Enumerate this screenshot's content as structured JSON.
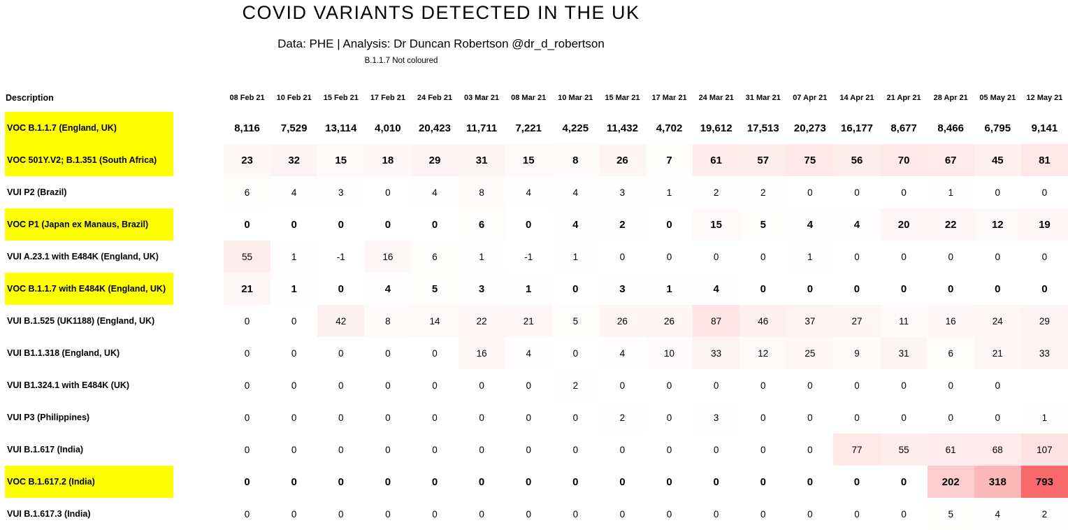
{
  "chart_data": {
    "type": "heatmap",
    "title": "COVID VARIANTS DETECTED IN THE UK",
    "subtitle": "Data: PHE | Analysis: Dr Duncan Robertson @dr_d_robertson",
    "note": "B.1.1.7 Not coloured",
    "row_header_label": "Description",
    "columns": [
      "08 Feb 21",
      "10 Feb 21",
      "15 Feb 21",
      "17 Feb 21",
      "24 Feb 21",
      "03 Mar 21",
      "08 Mar 21",
      "10 Mar 21",
      "15 Mar 21",
      "17 Mar 21",
      "24 Mar 21",
      "31 Mar 21",
      "07 Apr 21",
      "14 Apr 21",
      "21 Apr 21",
      "28 Apr 21",
      "05 May 21",
      "12 May 21"
    ],
    "heat_scale": {
      "min_color": "#FFFFFF",
      "max_color": "#F8696B",
      "max_value": 793,
      "gamma": 0.8
    },
    "highlight_color": "#FFFF00",
    "rows": [
      {
        "label": "VOC B.1.1.7 (England, UK)",
        "highlighted": true,
        "coloured": false,
        "values": [
          8116,
          7529,
          13114,
          4010,
          20423,
          11711,
          7221,
          4225,
          11432,
          4702,
          19612,
          17513,
          20273,
          16177,
          8677,
          8466,
          6795,
          9141
        ]
      },
      {
        "label": "VOC 501Y.V2; B.1.351 (South Africa)",
        "highlighted": true,
        "coloured": true,
        "values": [
          23,
          32,
          15,
          18,
          29,
          31,
          15,
          8,
          26,
          7,
          61,
          57,
          75,
          56,
          70,
          67,
          45,
          81
        ]
      },
      {
        "label": "VUI P2 (Brazil)",
        "highlighted": false,
        "coloured": true,
        "values": [
          6,
          4,
          3,
          0,
          4,
          8,
          4,
          4,
          3,
          1,
          2,
          2,
          0,
          0,
          0,
          1,
          0,
          0
        ]
      },
      {
        "label": "VOC P1 (Japan ex Manaus, Brazil)",
        "highlighted": true,
        "coloured": true,
        "values": [
          0,
          0,
          0,
          0,
          0,
          6,
          0,
          4,
          2,
          0,
          15,
          5,
          4,
          4,
          20,
          22,
          12,
          19
        ]
      },
      {
        "label": "VUI A.23.1 with E484K (England, UK)",
        "highlighted": false,
        "coloured": true,
        "values": [
          55,
          1,
          -1,
          16,
          6,
          1,
          -1,
          1,
          0,
          0,
          0,
          0,
          1,
          0,
          0,
          0,
          0,
          0
        ]
      },
      {
        "label": "VOC B.1.1.7 with E484K (England, UK)",
        "highlighted": true,
        "coloured": true,
        "values": [
          21,
          1,
          0,
          4,
          5,
          3,
          1,
          0,
          3,
          1,
          4,
          0,
          0,
          0,
          0,
          0,
          0,
          0
        ]
      },
      {
        "label": "VUI B.1.525 (UK1188) (England, UK)",
        "highlighted": false,
        "coloured": true,
        "values": [
          0,
          0,
          42,
          8,
          14,
          22,
          21,
          5,
          26,
          26,
          87,
          46,
          37,
          27,
          11,
          16,
          24,
          29
        ]
      },
      {
        "label": "VUI B1.1.318 (England, UK)",
        "highlighted": false,
        "coloured": true,
        "values": [
          0,
          0,
          0,
          0,
          0,
          16,
          4,
          0,
          4,
          10,
          33,
          12,
          25,
          9,
          31,
          6,
          21,
          33
        ]
      },
      {
        "label": "VUI B1.324.1 with E484K (UK)",
        "highlighted": false,
        "coloured": true,
        "values": [
          0,
          0,
          0,
          0,
          0,
          0,
          0,
          2,
          0,
          0,
          0,
          0,
          0,
          0,
          0,
          0,
          0,
          null
        ]
      },
      {
        "label": "VUI P3 (Philippines)",
        "highlighted": false,
        "coloured": true,
        "values": [
          0,
          0,
          0,
          0,
          0,
          0,
          0,
          0,
          2,
          0,
          3,
          0,
          0,
          0,
          0,
          0,
          0,
          1
        ]
      },
      {
        "label": "VUI B.1.617 (India)",
        "highlighted": false,
        "coloured": true,
        "values": [
          0,
          0,
          0,
          0,
          0,
          0,
          0,
          0,
          0,
          0,
          0,
          0,
          0,
          77,
          55,
          61,
          68,
          107
        ]
      },
      {
        "label": "VOC B.1.617.2 (India)",
        "highlighted": true,
        "coloured": true,
        "values": [
          0,
          0,
          0,
          0,
          0,
          0,
          0,
          0,
          0,
          0,
          0,
          0,
          0,
          0,
          0,
          202,
          318,
          793
        ]
      },
      {
        "label": "VUI B.1.617.3 (India)",
        "highlighted": false,
        "coloured": true,
        "values": [
          0,
          0,
          0,
          0,
          0,
          0,
          0,
          0,
          0,
          0,
          0,
          0,
          0,
          0,
          0,
          5,
          4,
          2
        ]
      }
    ]
  }
}
